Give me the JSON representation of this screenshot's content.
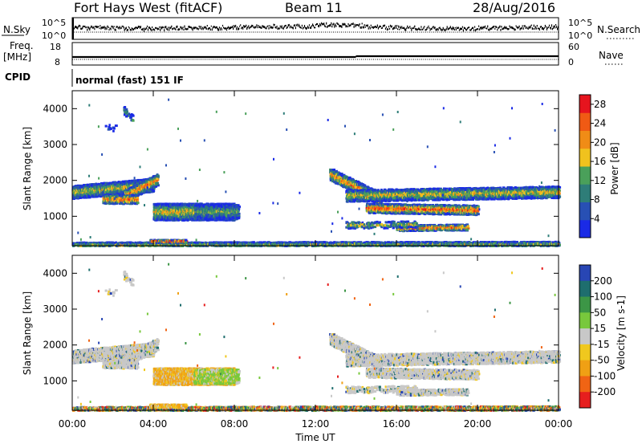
{
  "header": {
    "title": "Fort Hays West (fitACF)",
    "beam": "Beam 11",
    "date": "28/Aug/2016"
  },
  "top_panels": {
    "nsky_label": "N.Sky",
    "nsky_ticks": [
      "10^5",
      "10^0"
    ],
    "nsearch_label": "N.Search",
    "nsearch_ticks": [
      "10^5",
      "10^0"
    ],
    "freq_label_line1": "Freq.",
    "freq_label_line2": "[MHz]",
    "freq_ticks": [
      "18",
      "8"
    ],
    "nave_label": "Nave",
    "nave_ticks": [
      "60",
      "0"
    ],
    "cpid_label": "CPID",
    "cpid_text": "normal (fast) 151 IF"
  },
  "chart_data": [
    {
      "type": "heatmap",
      "name": "power",
      "ylabel": "Slant Range [km]",
      "xlabel": "",
      "x_range_hours": [
        0,
        24
      ],
      "ylim": [
        180,
        4500
      ],
      "y_ticks": [
        1000,
        2000,
        3000,
        4000
      ],
      "colorbar": {
        "label": "Power [dB]",
        "ticks": [
          4,
          8,
          12,
          16,
          20,
          24,
          28
        ],
        "range": [
          0,
          30
        ],
        "colors": [
          "#1a2ae6",
          "#2850b4",
          "#2e7d78",
          "#4aa05a",
          "#f0c21e",
          "#f08c16",
          "#f05a14",
          "#e6141e"
        ]
      }
    },
    {
      "type": "heatmap",
      "name": "velocity",
      "ylabel": "Slant Range [km]",
      "xlabel": "Time UT",
      "x_ticks": [
        "00:00",
        "04:00",
        "08:00",
        "12:00",
        "16:00",
        "20:00",
        "00:00"
      ],
      "x_range_hours": [
        0,
        24
      ],
      "ylim": [
        180,
        4500
      ],
      "y_ticks": [
        1000,
        2000,
        3000,
        4000
      ],
      "colorbar": {
        "label": "Velocity [m s-1]",
        "ticks": [
          200,
          100,
          50,
          15,
          -15,
          -50,
          -100,
          -200
        ],
        "colors": [
          "#2846b4",
          "#1e6e6e",
          "#3c9646",
          "#78c83c",
          "#c8c8c8",
          "#f0c81e",
          "#f0a014",
          "#f06414",
          "#e61e1e"
        ]
      }
    }
  ]
}
